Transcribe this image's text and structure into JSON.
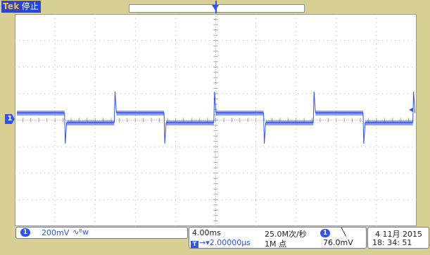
{
  "header": {
    "brand": "Tek",
    "status": "停止"
  },
  "screen": {
    "ch1_marker": "1",
    "trigger_marker": "T",
    "trigger_level_marker": "◂",
    "trace_color": "#2f52ff"
  },
  "channel_panel": {
    "channel": "1",
    "scale": "200mV",
    "coupling": "∿ᴮw"
  },
  "timebase_panel": {
    "time_div": "4.00ms",
    "trigger_position_icon": "T",
    "trigger_position": "→▾2.00000µs",
    "sample_rate": "25.0M次/秒",
    "record_length": "1M 点",
    "trigger_channel": "1",
    "trigger_slope": "╲",
    "trigger_level": "76.0mV"
  },
  "date_panel": {
    "date": "4 11月 2015",
    "time": "18: 34: 51"
  }
}
